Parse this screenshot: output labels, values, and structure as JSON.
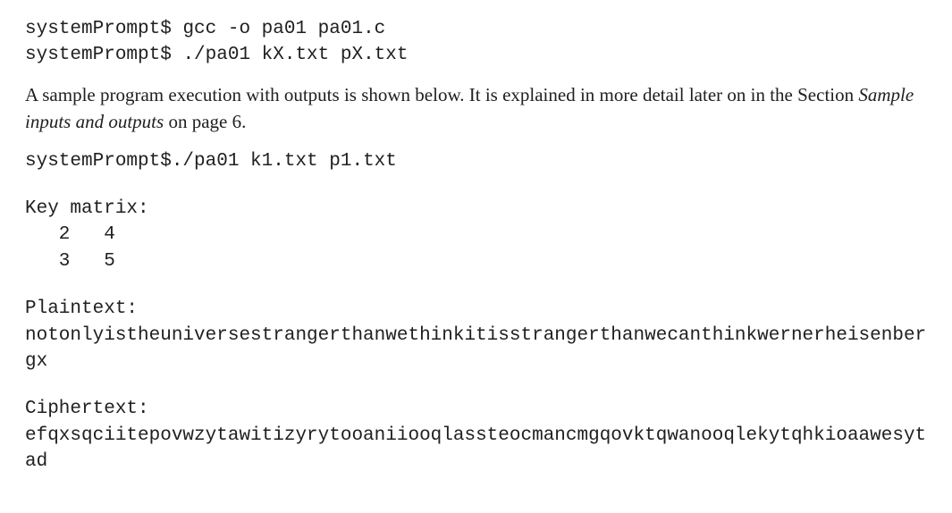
{
  "commands": {
    "prompt1": "systemPrompt$ ",
    "cmd1": "gcc -o pa01 pa01.c",
    "prompt2": "systemPrompt$ ",
    "cmd2": "./pa01 kX.txt pX.txt"
  },
  "prose": {
    "lead": "A sample program execution with outputs is shown below. It is explained in more detail later on in the Section ",
    "section_name": "Sample inputs and outputs",
    "tail": " on page 6."
  },
  "run": {
    "prompt": "systemPrompt$",
    "cmd": "./pa01 k1.txt p1.txt"
  },
  "output": {
    "key_label": "Key matrix:",
    "matrix_rows": [
      "   2   4",
      "   3   5"
    ],
    "plaintext_label": "Plaintext:",
    "plaintext": "notonlyistheuniversestrangerthanwethinkitisstrangerthanwecanthinkwernerheisenbergx",
    "ciphertext_label": "Ciphertext:",
    "ciphertext": "efqxsqciitepovwzytawitizyrytooaniiooqlassteocmancmgqovktqwanooqlekytqhkioaawesytad"
  },
  "style": {
    "code_font_family": "Courier New",
    "prose_font_family": "Georgia",
    "font_size_pt": 16,
    "text_color": "#202020",
    "background_color": "#ffffff"
  }
}
